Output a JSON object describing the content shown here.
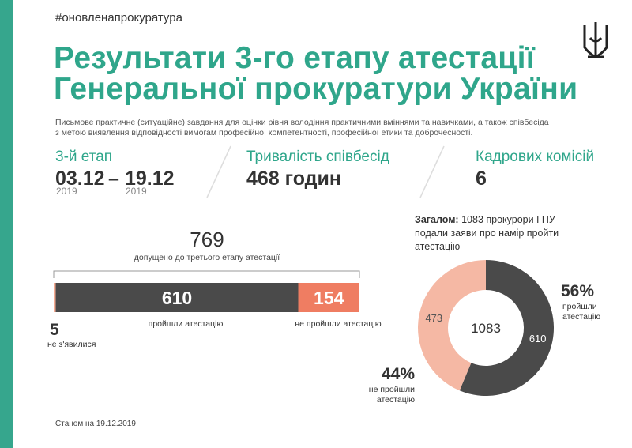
{
  "hashtag": "#оновленапрокуратура",
  "title": [
    "Результати 3-го етапу атестації",
    "Генеральної прокуратури України"
  ],
  "description": [
    "Письмове практичне (ситуаційне) завдання для оцінки рівня володіння практичними вміннями та навичками, а також співбесіда",
    "з метою виявлення відповідності вимогам професійної компетентності, професійної етики та доброчесності."
  ],
  "stats": [
    {
      "label": "3-й етап",
      "start": "03.12",
      "dash": "–",
      "end": "19.12",
      "start_year": "2019",
      "end_year": "2019"
    },
    {
      "label": "Тривалість співбесід",
      "value": "468 годин"
    },
    {
      "label": "Кадрових комісій",
      "value": "6"
    }
  ],
  "bar": {
    "total": 769,
    "total_label": "допущено до третього етапу атестації",
    "segments": [
      {
        "value": 5,
        "label": "не з'явилися",
        "color": "#f5ab92"
      },
      {
        "value": 610,
        "label": "пройшли атестацію",
        "color": "#4a4a4a"
      },
      {
        "value": 154,
        "label": "не пройшли атестацію",
        "color": "#ef7d62"
      }
    ]
  },
  "summary": {
    "bold": "Загалом:",
    "text": "1083 прокурори ГПУ подали заяви про намір пройти атестацію"
  },
  "donut": {
    "total": 1083,
    "segments": [
      {
        "value": 610,
        "percent_label": "56%",
        "label": [
          "пройшли",
          "атестацію"
        ],
        "color": "#4a4a4a"
      },
      {
        "value": 473,
        "percent_label": "44%",
        "label": [
          "не пройшли",
          "атестацію"
        ],
        "color": "#f5b8a4"
      }
    ]
  },
  "footer": "Станом на 19.12.2019"
}
